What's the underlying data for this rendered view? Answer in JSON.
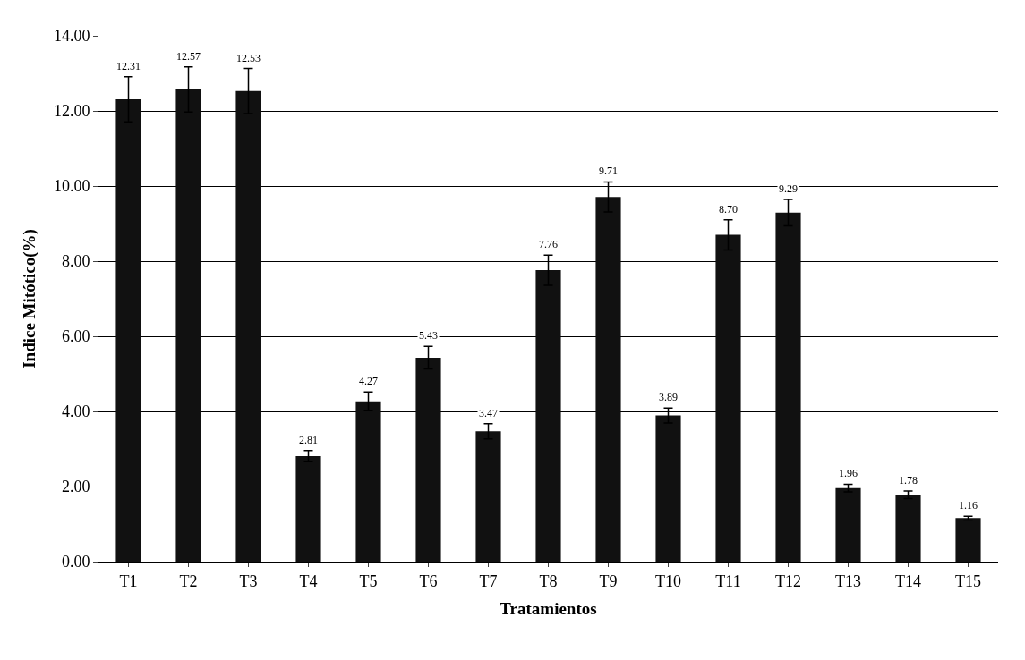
{
  "chart_data": {
    "type": "bar",
    "xlabel": "Tratamientos",
    "ylabel": "Indice Mitótico(%)",
    "categories": [
      "T1",
      "T2",
      "T3",
      "T4",
      "T5",
      "T6",
      "T7",
      "T8",
      "T9",
      "T10",
      "T11",
      "T12",
      "T13",
      "T14",
      "T15"
    ],
    "values": [
      12.31,
      12.57,
      12.53,
      2.81,
      4.27,
      5.43,
      3.47,
      7.76,
      9.71,
      3.89,
      8.7,
      9.29,
      1.96,
      1.78,
      1.16
    ],
    "errors": [
      0.6,
      0.6,
      0.6,
      0.15,
      0.25,
      0.3,
      0.2,
      0.4,
      0.4,
      0.2,
      0.4,
      0.35,
      0.1,
      0.1,
      0.05
    ],
    "value_labels": [
      "12.31",
      "12.57",
      "12.53",
      "2.81",
      "4.27",
      "5.43",
      "3.47",
      "7.76",
      "9.71",
      "3.89",
      "8.70",
      "9.29",
      "1.96",
      "1.78",
      "1.16"
    ],
    "color": "#111111",
    "ylim": [
      0,
      14
    ],
    "yticks": [
      {
        "value": 0,
        "label": "0.00"
      },
      {
        "value": 2,
        "label": "2.00"
      },
      {
        "value": 4,
        "label": "4.00"
      },
      {
        "value": 6,
        "label": "6.00"
      },
      {
        "value": 8,
        "label": "8.00"
      },
      {
        "value": 10,
        "label": "10.00"
      },
      {
        "value": 12,
        "label": "12.00"
      },
      {
        "value": 14,
        "label": "14.00"
      }
    ],
    "grid": "y"
  }
}
